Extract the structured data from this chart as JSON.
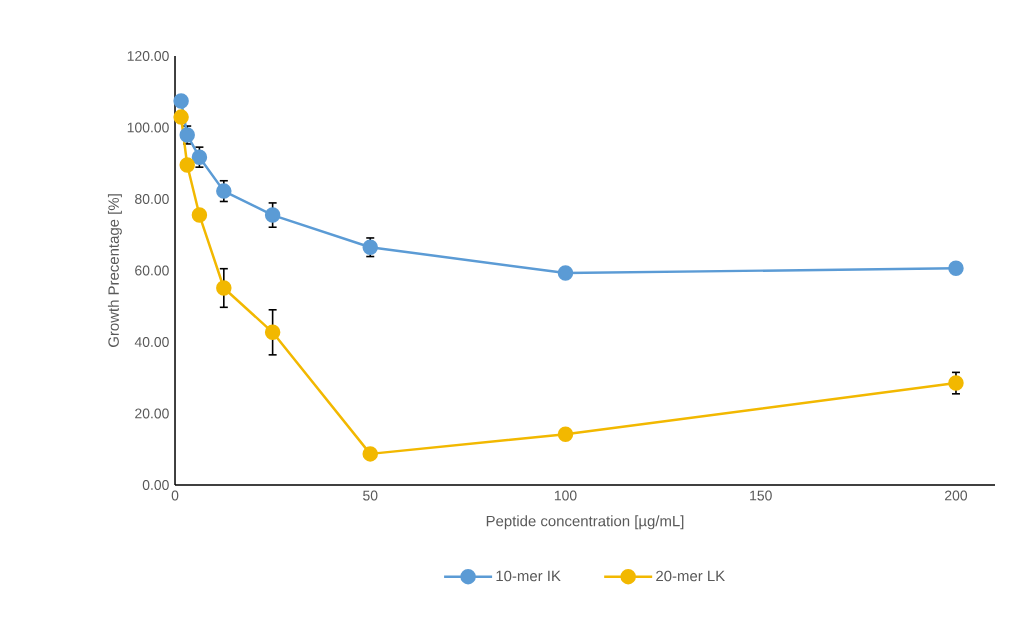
{
  "chart_data": {
    "type": "line",
    "xlabel": "Peptide concentration [µg/mL]",
    "ylabel": "Growth Precentage [%]",
    "x": [
      1.5625,
      3.125,
      6.25,
      12.5,
      25,
      50,
      100,
      200
    ],
    "series": [
      {
        "name": "10-mer IK",
        "color": "#5b9bd5",
        "values": [
          107.4,
          97.9,
          91.7,
          82.2,
          75.5,
          66.5,
          59.3,
          60.6
        ],
        "errors": [
          null,
          2.5,
          2.8,
          2.9,
          3.4,
          2.6,
          null,
          null
        ]
      },
      {
        "name": "20-mer LK",
        "color": "#f2b800",
        "values": [
          102.9,
          89.5,
          75.5,
          55.1,
          42.7,
          8.7,
          14.2,
          28.5
        ],
        "errors": [
          null,
          null,
          null,
          5.4,
          6.3,
          null,
          null,
          3
        ]
      }
    ],
    "xlim": [
      0,
      210
    ],
    "ylim": [
      0,
      120
    ],
    "xticks": [
      0,
      50,
      100,
      150,
      200
    ],
    "yticks": [
      {
        "value": 0,
        "label": "0.00"
      },
      {
        "value": 20,
        "label": "20.00"
      },
      {
        "value": 40,
        "label": "40.00"
      },
      {
        "value": 60,
        "label": "60.00"
      },
      {
        "value": 80,
        "label": "80.00"
      },
      {
        "value": 100,
        "label": "100.00"
      },
      {
        "value": 120,
        "label": "120.00"
      }
    ],
    "legend": "bottom",
    "marker": "circle",
    "line_style": "solid"
  }
}
